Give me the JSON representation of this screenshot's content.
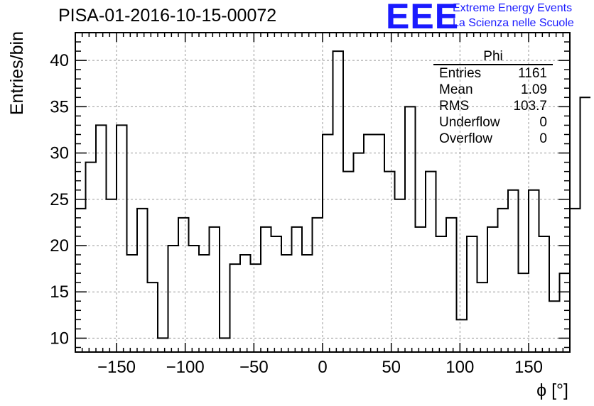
{
  "page_title": "PISA-01-2016-10-15-00072",
  "logo": {
    "mark": "EEE",
    "line1": "Extreme Energy Events",
    "line2": "La Scienza nelle Scuole"
  },
  "stats": {
    "name": "Phi",
    "rows": [
      {
        "label": "Entries",
        "value": "1161"
      },
      {
        "label": "Mean",
        "value": "1.09"
      },
      {
        "label": "RMS",
        "value": "103.7"
      },
      {
        "label": "Underflow",
        "value": "0"
      },
      {
        "label": "Overflow",
        "value": "0"
      }
    ]
  },
  "colors": {
    "line": "#000000",
    "grid": "#999999",
    "logo": "#1a1aff"
  },
  "chart_data": {
    "type": "bar",
    "style": "step-histogram",
    "title": "PISA-01-2016-10-15-00072",
    "xlabel": "ϕ [°]",
    "ylabel": "Entries/bin",
    "xlim": [
      -180,
      180
    ],
    "ylim": [
      8.5,
      43
    ],
    "bin_width": 7.5,
    "x_ticks": [
      -150,
      -100,
      -50,
      0,
      50,
      100,
      150
    ],
    "x_tick_labels": [
      "−150",
      "−100",
      "−50",
      "0",
      "50",
      "100",
      "150"
    ],
    "y_ticks": [
      10,
      15,
      20,
      25,
      30,
      35,
      40
    ],
    "y_tick_labels": [
      "10",
      "15",
      "20",
      "25",
      "30",
      "35",
      "40"
    ],
    "grid": true,
    "values": [
      24,
      29,
      33,
      25,
      33,
      19,
      24,
      16,
      10,
      20,
      23,
      20,
      19,
      22,
      10,
      18,
      19,
      18,
      22,
      21,
      19,
      22,
      19,
      23,
      32,
      41,
      28,
      30,
      32,
      32,
      28,
      25,
      35,
      22,
      28,
      21,
      23,
      12,
      21,
      16,
      22,
      24,
      26,
      17,
      26,
      21,
      14,
      17,
      24,
      36
    ]
  }
}
